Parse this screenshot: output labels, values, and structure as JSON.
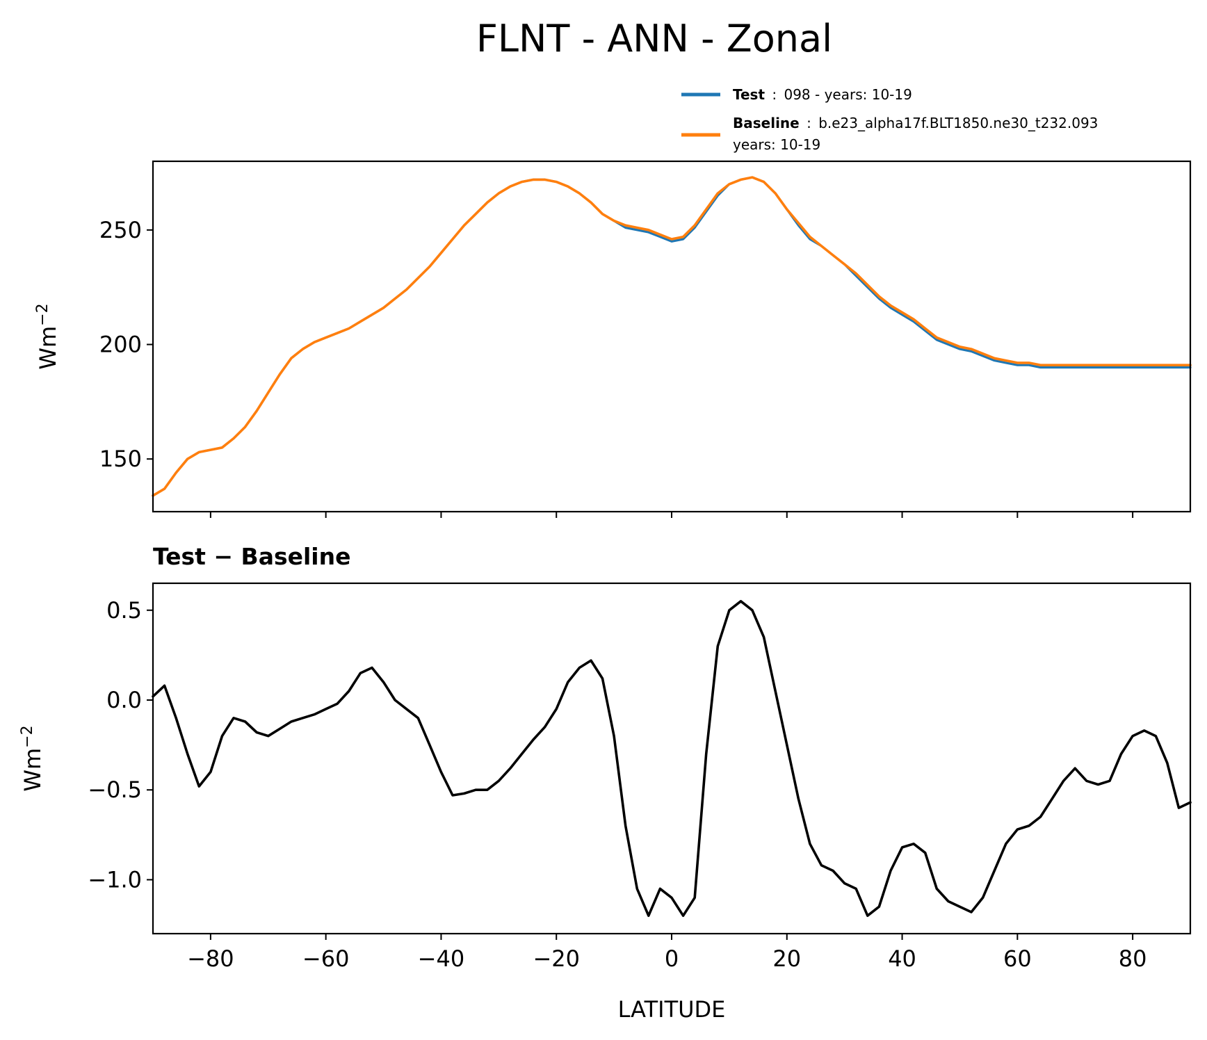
{
  "figure": {
    "title": "FLNT - ANN - Zonal"
  },
  "legend": {
    "entries": [
      {
        "name_bold": "Test",
        "separator": ":",
        "description": "098 - years: 10-19",
        "color": "#1f77b4"
      },
      {
        "name_bold": "Baseline",
        "separator": ":",
        "description": "b.e23_alpha17f.BLT1850.ne30_t232.093",
        "description_line2": "years: 10-19",
        "color": "#ff7f0e"
      }
    ]
  },
  "chart_data": [
    {
      "type": "line",
      "title": "",
      "xlabel": "",
      "ylabel_main": "Wm",
      "ylabel_sup": "−2",
      "xlim": [
        -90,
        90
      ],
      "ylim": [
        127,
        280
      ],
      "yticks": [
        150,
        200,
        250
      ],
      "ytick_labels": [
        "150",
        "200",
        "250"
      ],
      "xticks": [
        -80,
        -60,
        -40,
        -20,
        0,
        20,
        40,
        60,
        80
      ],
      "x": [
        -90,
        -88,
        -86,
        -84,
        -82,
        -80,
        -78,
        -76,
        -74,
        -72,
        -70,
        -68,
        -66,
        -64,
        -62,
        -60,
        -58,
        -56,
        -54,
        -52,
        -50,
        -48,
        -46,
        -44,
        -42,
        -40,
        -38,
        -36,
        -34,
        -32,
        -30,
        -28,
        -26,
        -24,
        -22,
        -20,
        -18,
        -16,
        -14,
        -12,
        -10,
        -8,
        -6,
        -4,
        -2,
        0,
        2,
        4,
        6,
        8,
        10,
        12,
        14,
        16,
        18,
        20,
        22,
        24,
        26,
        28,
        30,
        32,
        34,
        36,
        38,
        40,
        42,
        44,
        46,
        48,
        50,
        52,
        54,
        56,
        58,
        60,
        62,
        64,
        66,
        68,
        70,
        72,
        74,
        76,
        78,
        80,
        82,
        84,
        86,
        88,
        90
      ],
      "series": [
        {
          "name": "Test",
          "color": "#1f77b4",
          "values": [
            134,
            137,
            144,
            150,
            153,
            154,
            155,
            159,
            164,
            171,
            179,
            187,
            194,
            198,
            201,
            203,
            205,
            207,
            210,
            213,
            216,
            220,
            224,
            229,
            234,
            240,
            246,
            252,
            257,
            262,
            266,
            269,
            271,
            272,
            272,
            271,
            269,
            266,
            262,
            257,
            254,
            251,
            250,
            249,
            247,
            245,
            246,
            251,
            258,
            265,
            270,
            272,
            273,
            271,
            266,
            259,
            252,
            246,
            243,
            239,
            235,
            230,
            225,
            220,
            216,
            213,
            210,
            206,
            202,
            200,
            198,
            197,
            195,
            193,
            192,
            191,
            191,
            190,
            190,
            190,
            190,
            190,
            190,
            190,
            190,
            190,
            190,
            190,
            190,
            190,
            190
          ]
        },
        {
          "name": "Baseline",
          "color": "#ff7f0e",
          "values": [
            134,
            137,
            144,
            150,
            153,
            154,
            155,
            159,
            164,
            171,
            179,
            187,
            194,
            198,
            201,
            203,
            205,
            207,
            210,
            213,
            216,
            220,
            224,
            229,
            234,
            240,
            246,
            252,
            257,
            262,
            266,
            269,
            271,
            272,
            272,
            271,
            269,
            266,
            262,
            257,
            254,
            252,
            251,
            250,
            248,
            246,
            247,
            252,
            259,
            266,
            270,
            272,
            273,
            271,
            266,
            259,
            253,
            247,
            243,
            239,
            235,
            231,
            226,
            221,
            217,
            214,
            211,
            207,
            203,
            201,
            199,
            198,
            196,
            194,
            193,
            192,
            192,
            191,
            191,
            191,
            191,
            191,
            191,
            191,
            191,
            191,
            191,
            191,
            191,
            191,
            191
          ]
        }
      ]
    },
    {
      "type": "line",
      "title": "Test − Baseline",
      "xlabel": "LATITUDE",
      "ylabel_main": "Wm",
      "ylabel_sup": "−2",
      "xlim": [
        -90,
        90
      ],
      "ylim": [
        -1.3,
        0.65
      ],
      "yticks": [
        -1.0,
        -0.5,
        0.0,
        0.5
      ],
      "ytick_labels": [
        "−1.0",
        "−0.5",
        "0.0",
        "0.5"
      ],
      "xticks": [
        -80,
        -60,
        -40,
        -20,
        0,
        20,
        40,
        60,
        80
      ],
      "xtick_labels": [
        "−80",
        "−60",
        "−40",
        "−20",
        "0",
        "20",
        "40",
        "60",
        "80"
      ],
      "x": [
        -90,
        -88,
        -86,
        -84,
        -82,
        -80,
        -78,
        -76,
        -74,
        -72,
        -70,
        -68,
        -66,
        -64,
        -62,
        -60,
        -58,
        -56,
        -54,
        -52,
        -50,
        -48,
        -46,
        -44,
        -42,
        -40,
        -38,
        -36,
        -34,
        -32,
        -30,
        -28,
        -26,
        -24,
        -22,
        -20,
        -18,
        -16,
        -14,
        -12,
        -10,
        -8,
        -6,
        -4,
        -2,
        0,
        2,
        4,
        6,
        8,
        10,
        12,
        14,
        16,
        18,
        20,
        22,
        24,
        26,
        28,
        30,
        32,
        34,
        36,
        38,
        40,
        42,
        44,
        46,
        48,
        50,
        52,
        54,
        56,
        58,
        60,
        62,
        64,
        66,
        68,
        70,
        72,
        74,
        76,
        78,
        80,
        82,
        84,
        86,
        88,
        90
      ],
      "series": [
        {
          "name": "",
          "color": "#000000",
          "values": [
            0.02,
            0.08,
            -0.1,
            -0.3,
            -0.48,
            -0.4,
            -0.2,
            -0.1,
            -0.12,
            -0.18,
            -0.2,
            -0.16,
            -0.12,
            -0.1,
            -0.08,
            -0.05,
            -0.02,
            0.05,
            0.15,
            0.18,
            0.1,
            0.0,
            -0.05,
            -0.1,
            -0.25,
            -0.4,
            -0.53,
            -0.52,
            -0.5,
            -0.5,
            -0.45,
            -0.38,
            -0.3,
            -0.22,
            -0.15,
            -0.05,
            0.1,
            0.18,
            0.22,
            0.12,
            -0.2,
            -0.7,
            -1.05,
            -1.2,
            -1.05,
            -1.1,
            -1.2,
            -1.1,
            -0.3,
            0.3,
            0.5,
            0.55,
            0.5,
            0.35,
            0.05,
            -0.25,
            -0.55,
            -0.8,
            -0.92,
            -0.95,
            -1.02,
            -1.05,
            -1.2,
            -1.15,
            -0.95,
            -0.82,
            -0.8,
            -0.85,
            -1.05,
            -1.12,
            -1.15,
            -1.18,
            -1.1,
            -0.95,
            -0.8,
            -0.72,
            -0.7,
            -0.65,
            -0.55,
            -0.45,
            -0.38,
            -0.45,
            -0.47,
            -0.45,
            -0.3,
            -0.2,
            -0.17,
            -0.2,
            -0.35,
            -0.6,
            -0.57
          ]
        }
      ]
    }
  ]
}
